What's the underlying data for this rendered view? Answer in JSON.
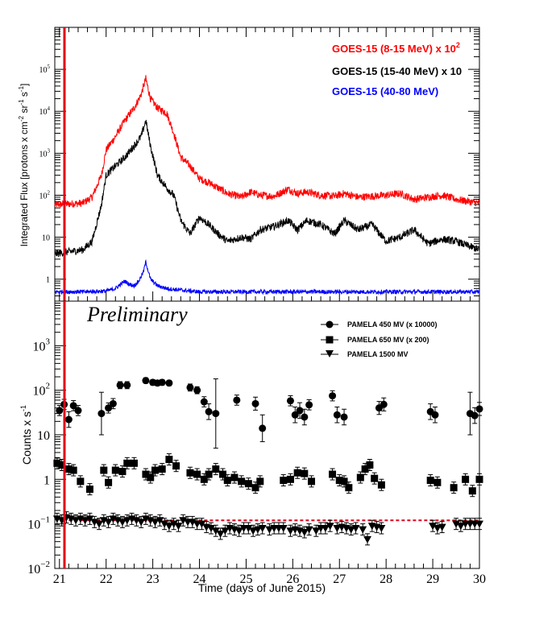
{
  "chart_data": [
    {
      "type": "line",
      "panel": "top",
      "ylabel": "Integrated Flux [protons x cm^-2 sr^-1 s^-1]",
      "ylabel_parts": {
        "base": "Integrated Flux [protons x cm",
        "e1": "-2",
        "mid1": " sr",
        "e2": "-1",
        "mid2": " s",
        "e3": "-1",
        "end": "]"
      },
      "yscale": "log",
      "ylim": [
        0.3,
        1000000
      ],
      "xlim": [
        20.9,
        30.0
      ],
      "yticks": [
        {
          "value": 1,
          "base": "1",
          "exp": ""
        },
        {
          "value": 10,
          "base": "10",
          "exp": ""
        },
        {
          "value": 100,
          "base": "10",
          "exp": "2"
        },
        {
          "value": 1000,
          "base": "10",
          "exp": "3"
        },
        {
          "value": 10000,
          "base": "10",
          "exp": "4"
        },
        {
          "value": 100000,
          "base": "10",
          "exp": "5"
        }
      ],
      "series": [
        {
          "name": "GOES-15 (8-15 MeV) x 10^2",
          "label_base": "GOES-15 (8-15 MeV) x 10",
          "label_exp": "2",
          "color": "#ff0000",
          "x": [
            20.9,
            21.2,
            21.5,
            21.7,
            21.9,
            22.0,
            22.2,
            22.4,
            22.6,
            22.75,
            22.85,
            22.95,
            23.1,
            23.3,
            23.45,
            23.6,
            23.8,
            24.0,
            24.2,
            24.4,
            24.6,
            24.9,
            25.1,
            25.3,
            25.6,
            25.9,
            26.1,
            26.3,
            26.6,
            26.9,
            27.1,
            27.4,
            27.7,
            28.0,
            28.3,
            28.6,
            28.9,
            29.2,
            29.5,
            29.8,
            30.0
          ],
          "y": [
            60,
            62,
            65,
            90,
            300,
            1200,
            2500,
            6000,
            12000,
            25000,
            60000,
            20000,
            12000,
            9000,
            3000,
            800,
            500,
            250,
            200,
            150,
            110,
            90,
            120,
            100,
            95,
            140,
            110,
            120,
            100,
            95,
            110,
            90,
            95,
            100,
            110,
            80,
            90,
            100,
            80,
            70,
            65
          ]
        },
        {
          "name": "GOES-15 (15-40 MeV) x 10",
          "label": "GOES-15 (15-40 MeV) x 10",
          "color": "#000000",
          "x": [
            20.9,
            21.2,
            21.5,
            21.7,
            21.9,
            22.0,
            22.2,
            22.4,
            22.6,
            22.75,
            22.85,
            22.95,
            23.1,
            23.3,
            23.45,
            23.6,
            23.8,
            24.0,
            24.2,
            24.4,
            24.6,
            24.9,
            25.1,
            25.3,
            25.6,
            25.9,
            26.1,
            26.3,
            26.6,
            26.9,
            27.1,
            27.4,
            27.7,
            28.0,
            28.3,
            28.6,
            28.9,
            29.2,
            29.5,
            29.8,
            30.0
          ],
          "y": [
            4,
            4.5,
            5,
            8,
            60,
            300,
            500,
            800,
            1500,
            2500,
            6000,
            1500,
            300,
            150,
            100,
            25,
            12,
            30,
            20,
            12,
            8,
            10,
            9,
            15,
            18,
            25,
            15,
            25,
            20,
            12,
            25,
            15,
            20,
            8,
            10,
            15,
            7,
            9,
            8,
            6,
            5
          ]
        },
        {
          "name": "GOES-15 (40-80 MeV)",
          "label": "GOES-15 (40-80 MeV)",
          "color": "#0000ff",
          "x": [
            20.9,
            21.5,
            22.0,
            22.2,
            22.4,
            22.5,
            22.6,
            22.7,
            22.8,
            22.85,
            22.95,
            23.1,
            23.3,
            23.6,
            24.0,
            25.0,
            26.0,
            27.0,
            28.0,
            29.0,
            30.0
          ],
          "y": [
            0.5,
            0.5,
            0.52,
            0.6,
            0.9,
            0.75,
            0.7,
            0.9,
            1.5,
            2.6,
            1.0,
            0.7,
            0.6,
            0.55,
            0.5,
            0.5,
            0.5,
            0.5,
            0.5,
            0.5,
            0.5
          ]
        }
      ]
    },
    {
      "type": "scatter",
      "panel": "bottom",
      "title": "Preliminary",
      "ylabel": "Counts x s^-1",
      "ylabel_parts": {
        "base": "Counts x s",
        "e1": "-1"
      },
      "xlabel": "Time (days of June 2015)",
      "yscale": "log",
      "ylim": [
        0.01,
        10000
      ],
      "xlim": [
        20.9,
        30.0
      ],
      "xticks": [
        "21",
        "22",
        "23",
        "24",
        "25",
        "26",
        "27",
        "28",
        "29",
        "30"
      ],
      "xtick_values": [
        21,
        22,
        23,
        24,
        25,
        26,
        27,
        28,
        29,
        30
      ],
      "yticks": [
        {
          "value": 0.01,
          "base": "10",
          "exp": "−2"
        },
        {
          "value": 0.1,
          "base": "10",
          "exp": "−1"
        },
        {
          "value": 1,
          "base": "1",
          "exp": ""
        },
        {
          "value": 10,
          "base": "10",
          "exp": ""
        },
        {
          "value": 100,
          "base": "10",
          "exp": "2"
        },
        {
          "value": 1000,
          "base": "10",
          "exp": "3"
        }
      ],
      "reference_line_y": 0.12,
      "event_line_x": 21.12,
      "series": [
        {
          "name": "PAMELA 450 MV (x 10000)",
          "marker": "circle",
          "x": [
            21.0,
            21.1,
            21.2,
            21.3,
            21.4,
            21.9,
            22.05,
            22.15,
            22.3,
            22.45,
            22.85,
            23.0,
            23.1,
            23.2,
            23.35,
            23.8,
            23.95,
            24.1,
            24.2,
            24.35,
            24.8,
            25.2,
            25.35,
            25.95,
            26.05,
            26.15,
            26.25,
            26.35,
            26.85,
            26.95,
            27.1,
            27.85,
            27.95,
            28.95,
            29.05,
            29.8,
            29.9,
            30.0
          ],
          "y": [
            35,
            48,
            22,
            45,
            35,
            30,
            40,
            50,
            130,
            130,
            165,
            150,
            145,
            150,
            145,
            115,
            100,
            55,
            33,
            30,
            60,
            50,
            14,
            58,
            28,
            35,
            25,
            47,
            75,
            28,
            25,
            40,
            48,
            33,
            28,
            30,
            27,
            38
          ],
          "yerr_lo": [
            0.5,
            0.5,
            0.5,
            0.5,
            0.5,
            0.5,
            0.5,
            0.5,
            0.5,
            0.5,
            0.5,
            0.5,
            0.5,
            0.5,
            0.5,
            0.5,
            0.5,
            0.5,
            0.5,
            0.5,
            0.5,
            0.5,
            0.5,
            0.5,
            0.5,
            0.5,
            0.5,
            0.5,
            0.5,
            0.5,
            0.5,
            0.5,
            0.5,
            0.5,
            0.5,
            0.5,
            0.5,
            0.5
          ],
          "yerr": [
            1.3,
            1.3,
            1.5,
            1.3,
            1.3,
            3.0,
            1.3,
            1.3,
            1.2,
            1.2,
            1.15,
            1.15,
            1.15,
            1.15,
            1.15,
            1.2,
            1.2,
            1.3,
            1.5,
            6.0,
            1.3,
            1.4,
            2.0,
            1.3,
            1.5,
            1.5,
            1.5,
            1.3,
            1.3,
            1.5,
            1.5,
            1.4,
            1.4,
            1.5,
            1.5,
            3.0,
            1.5,
            1.4
          ]
        },
        {
          "name": "PAMELA 650 MV (x 200)",
          "marker": "square",
          "x": [
            20.95,
            21.05,
            21.2,
            21.3,
            21.45,
            21.65,
            21.95,
            22.05,
            22.2,
            22.35,
            22.45,
            22.6,
            22.85,
            22.95,
            23.05,
            23.2,
            23.35,
            23.5,
            23.8,
            23.95,
            24.1,
            24.2,
            24.35,
            24.5,
            24.6,
            24.75,
            24.9,
            25.05,
            25.2,
            25.3,
            25.8,
            25.95,
            26.1,
            26.25,
            26.4,
            26.85,
            27.0,
            27.1,
            27.2,
            27.45,
            27.55,
            27.65,
            27.75,
            27.9,
            28.95,
            29.1,
            29.45,
            29.7,
            29.85,
            30.0
          ],
          "y": [
            2.3,
            2.1,
            1.7,
            1.6,
            0.9,
            0.6,
            1.6,
            0.85,
            1.6,
            1.5,
            2.3,
            2.3,
            1.3,
            1.1,
            1.6,
            1.7,
            2.8,
            2.0,
            1.4,
            1.3,
            1.0,
            1.3,
            1.7,
            1.3,
            0.95,
            1.1,
            0.9,
            0.8,
            0.65,
            0.9,
            0.95,
            1.0,
            1.4,
            1.35,
            0.9,
            1.3,
            0.95,
            0.9,
            0.65,
            1.1,
            1.7,
            2.1,
            1.05,
            0.75,
            0.95,
            0.85,
            0.65,
            1.0,
            0.55,
            1.0
          ]
        },
        {
          "name": "PAMELA 1500 MV",
          "marker": "triangle-down",
          "x": [
            20.95,
            21.05,
            21.15,
            21.25,
            21.35,
            21.45,
            21.55,
            21.65,
            21.75,
            21.85,
            21.95,
            22.05,
            22.15,
            22.25,
            22.35,
            22.45,
            22.55,
            22.65,
            22.75,
            22.85,
            22.95,
            23.05,
            23.15,
            23.25,
            23.35,
            23.45,
            23.55,
            23.65,
            23.75,
            23.85,
            23.95,
            24.05,
            24.15,
            24.25,
            24.35,
            24.45,
            24.55,
            24.65,
            24.75,
            24.85,
            24.95,
            25.05,
            25.15,
            25.25,
            25.35,
            25.5,
            25.6,
            25.7,
            25.8,
            25.95,
            26.05,
            26.15,
            26.25,
            26.35,
            26.5,
            26.6,
            26.7,
            26.8,
            26.95,
            27.05,
            27.15,
            27.25,
            27.35,
            27.5,
            27.6,
            27.7,
            27.8,
            27.9,
            29.0,
            29.1,
            29.2,
            29.5,
            29.6,
            29.7,
            29.8,
            29.9,
            30.0
          ],
          "y": [
            0.13,
            0.12,
            0.14,
            0.13,
            0.12,
            0.13,
            0.12,
            0.13,
            0.11,
            0.1,
            0.12,
            0.11,
            0.13,
            0.12,
            0.11,
            0.12,
            0.13,
            0.12,
            0.11,
            0.13,
            0.12,
            0.11,
            0.12,
            0.1,
            0.09,
            0.1,
            0.09,
            0.12,
            0.11,
            0.11,
            0.1,
            0.1,
            0.085,
            0.08,
            0.07,
            0.06,
            0.07,
            0.08,
            0.075,
            0.07,
            0.08,
            0.08,
            0.07,
            0.075,
            0.08,
            0.075,
            0.08,
            0.08,
            0.08,
            0.07,
            0.075,
            0.07,
            0.065,
            0.075,
            0.07,
            0.08,
            0.08,
            0.09,
            0.08,
            0.085,
            0.08,
            0.075,
            0.08,
            0.075,
            0.045,
            0.09,
            0.085,
            0.08,
            0.09,
            0.08,
            0.085,
            0.1,
            0.09,
            0.1,
            0.1,
            0.1,
            0.1
          ]
        }
      ]
    }
  ]
}
